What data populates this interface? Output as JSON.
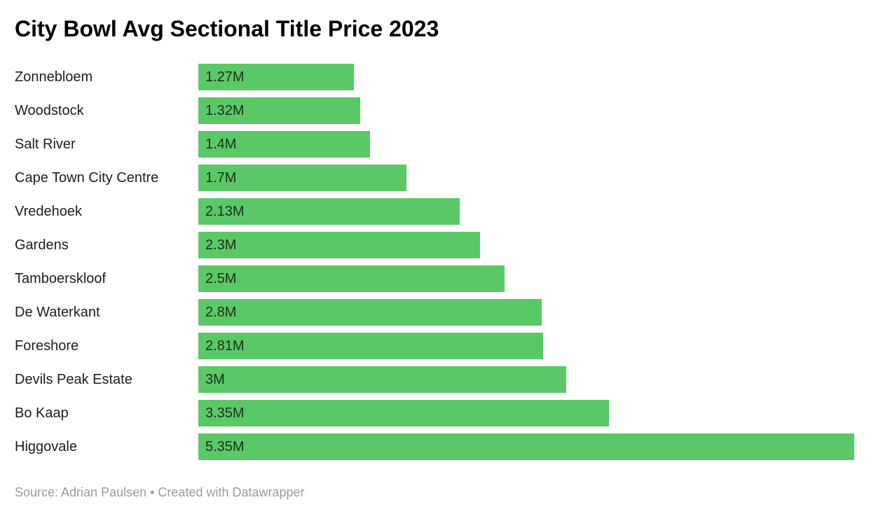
{
  "header": {
    "title": "City Bowl Avg Sectional Title Price 2023"
  },
  "footer": {
    "text": "Source: Adrian Paulsen • Created with Datawrapper"
  },
  "colors": {
    "bar": "#5BC868",
    "title_text": "#000000",
    "category_text": "#1d1d1d",
    "value_text": "rgba(0,0,0,0.76)",
    "footer_text": "#9b9b9b",
    "background": "#ffffff"
  },
  "chart_data": {
    "type": "bar",
    "orientation": "horizontal",
    "title": "City Bowl Avg Sectional Title Price 2023",
    "xlabel": "",
    "ylabel": "",
    "xlim": [
      0,
      5.35
    ],
    "grid": false,
    "legend": false,
    "unit": "M",
    "bar_color": "#5BC868",
    "categories": [
      "Zonnebloem",
      "Woodstock",
      "Salt River",
      "Cape Town City Centre",
      "Vredehoek",
      "Gardens",
      "Tamboerskloof",
      "De Waterkant",
      "Foreshore",
      "Devils Peak Estate",
      "Bo Kaap",
      "Higgovale"
    ],
    "values": [
      1.27,
      1.32,
      1.4,
      1.7,
      2.13,
      2.3,
      2.5,
      2.8,
      2.81,
      3,
      3.35,
      5.35
    ],
    "value_labels": [
      "1.27M",
      "1.32M",
      "1.4M",
      "1.7M",
      "2.13M",
      "2.3M",
      "2.5M",
      "2.8M",
      "2.81M",
      "3M",
      "3.35M",
      "5.35M"
    ],
    "source": "Adrian Paulsen",
    "credit": "Created with Datawrapper"
  }
}
